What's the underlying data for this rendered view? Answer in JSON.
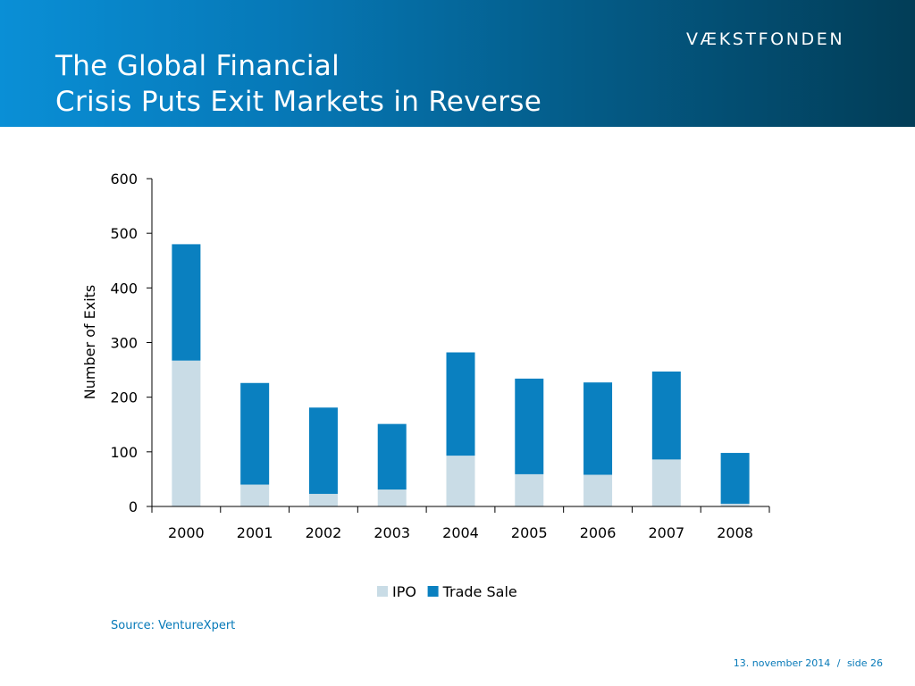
{
  "header": {
    "title_line1": "The Global Financial",
    "title_line2": "Crisis Puts Exit Markets in Reverse",
    "logo_text": "VÆKSTFONDEN"
  },
  "colors": {
    "ipo": "#c9dce6",
    "trade_sale": "#0a80c0",
    "axis": "#000000",
    "accent": "#0679b8"
  },
  "chart_data": {
    "type": "bar",
    "stacked": true,
    "categories": [
      "2000",
      "2001",
      "2002",
      "2003",
      "2004",
      "2005",
      "2006",
      "2007",
      "2008"
    ],
    "series": [
      {
        "name": "IPO",
        "values": [
          267,
          40,
          23,
          31,
          93,
          59,
          58,
          86,
          5
        ]
      },
      {
        "name": "Trade Sale",
        "values": [
          213,
          186,
          158,
          120,
          189,
          175,
          169,
          161,
          93
        ]
      }
    ],
    "ylabel": "Number of Exits",
    "xlabel": "",
    "ylim": [
      0,
      600
    ],
    "yticks": [
      0,
      100,
      200,
      300,
      400,
      500,
      600
    ],
    "grid": false,
    "legend": "bottom-center"
  },
  "source": "Source: VentureXpert",
  "footer": {
    "date": "13. november 2014",
    "separator": "/",
    "page_label": "side",
    "page_number": "26"
  }
}
